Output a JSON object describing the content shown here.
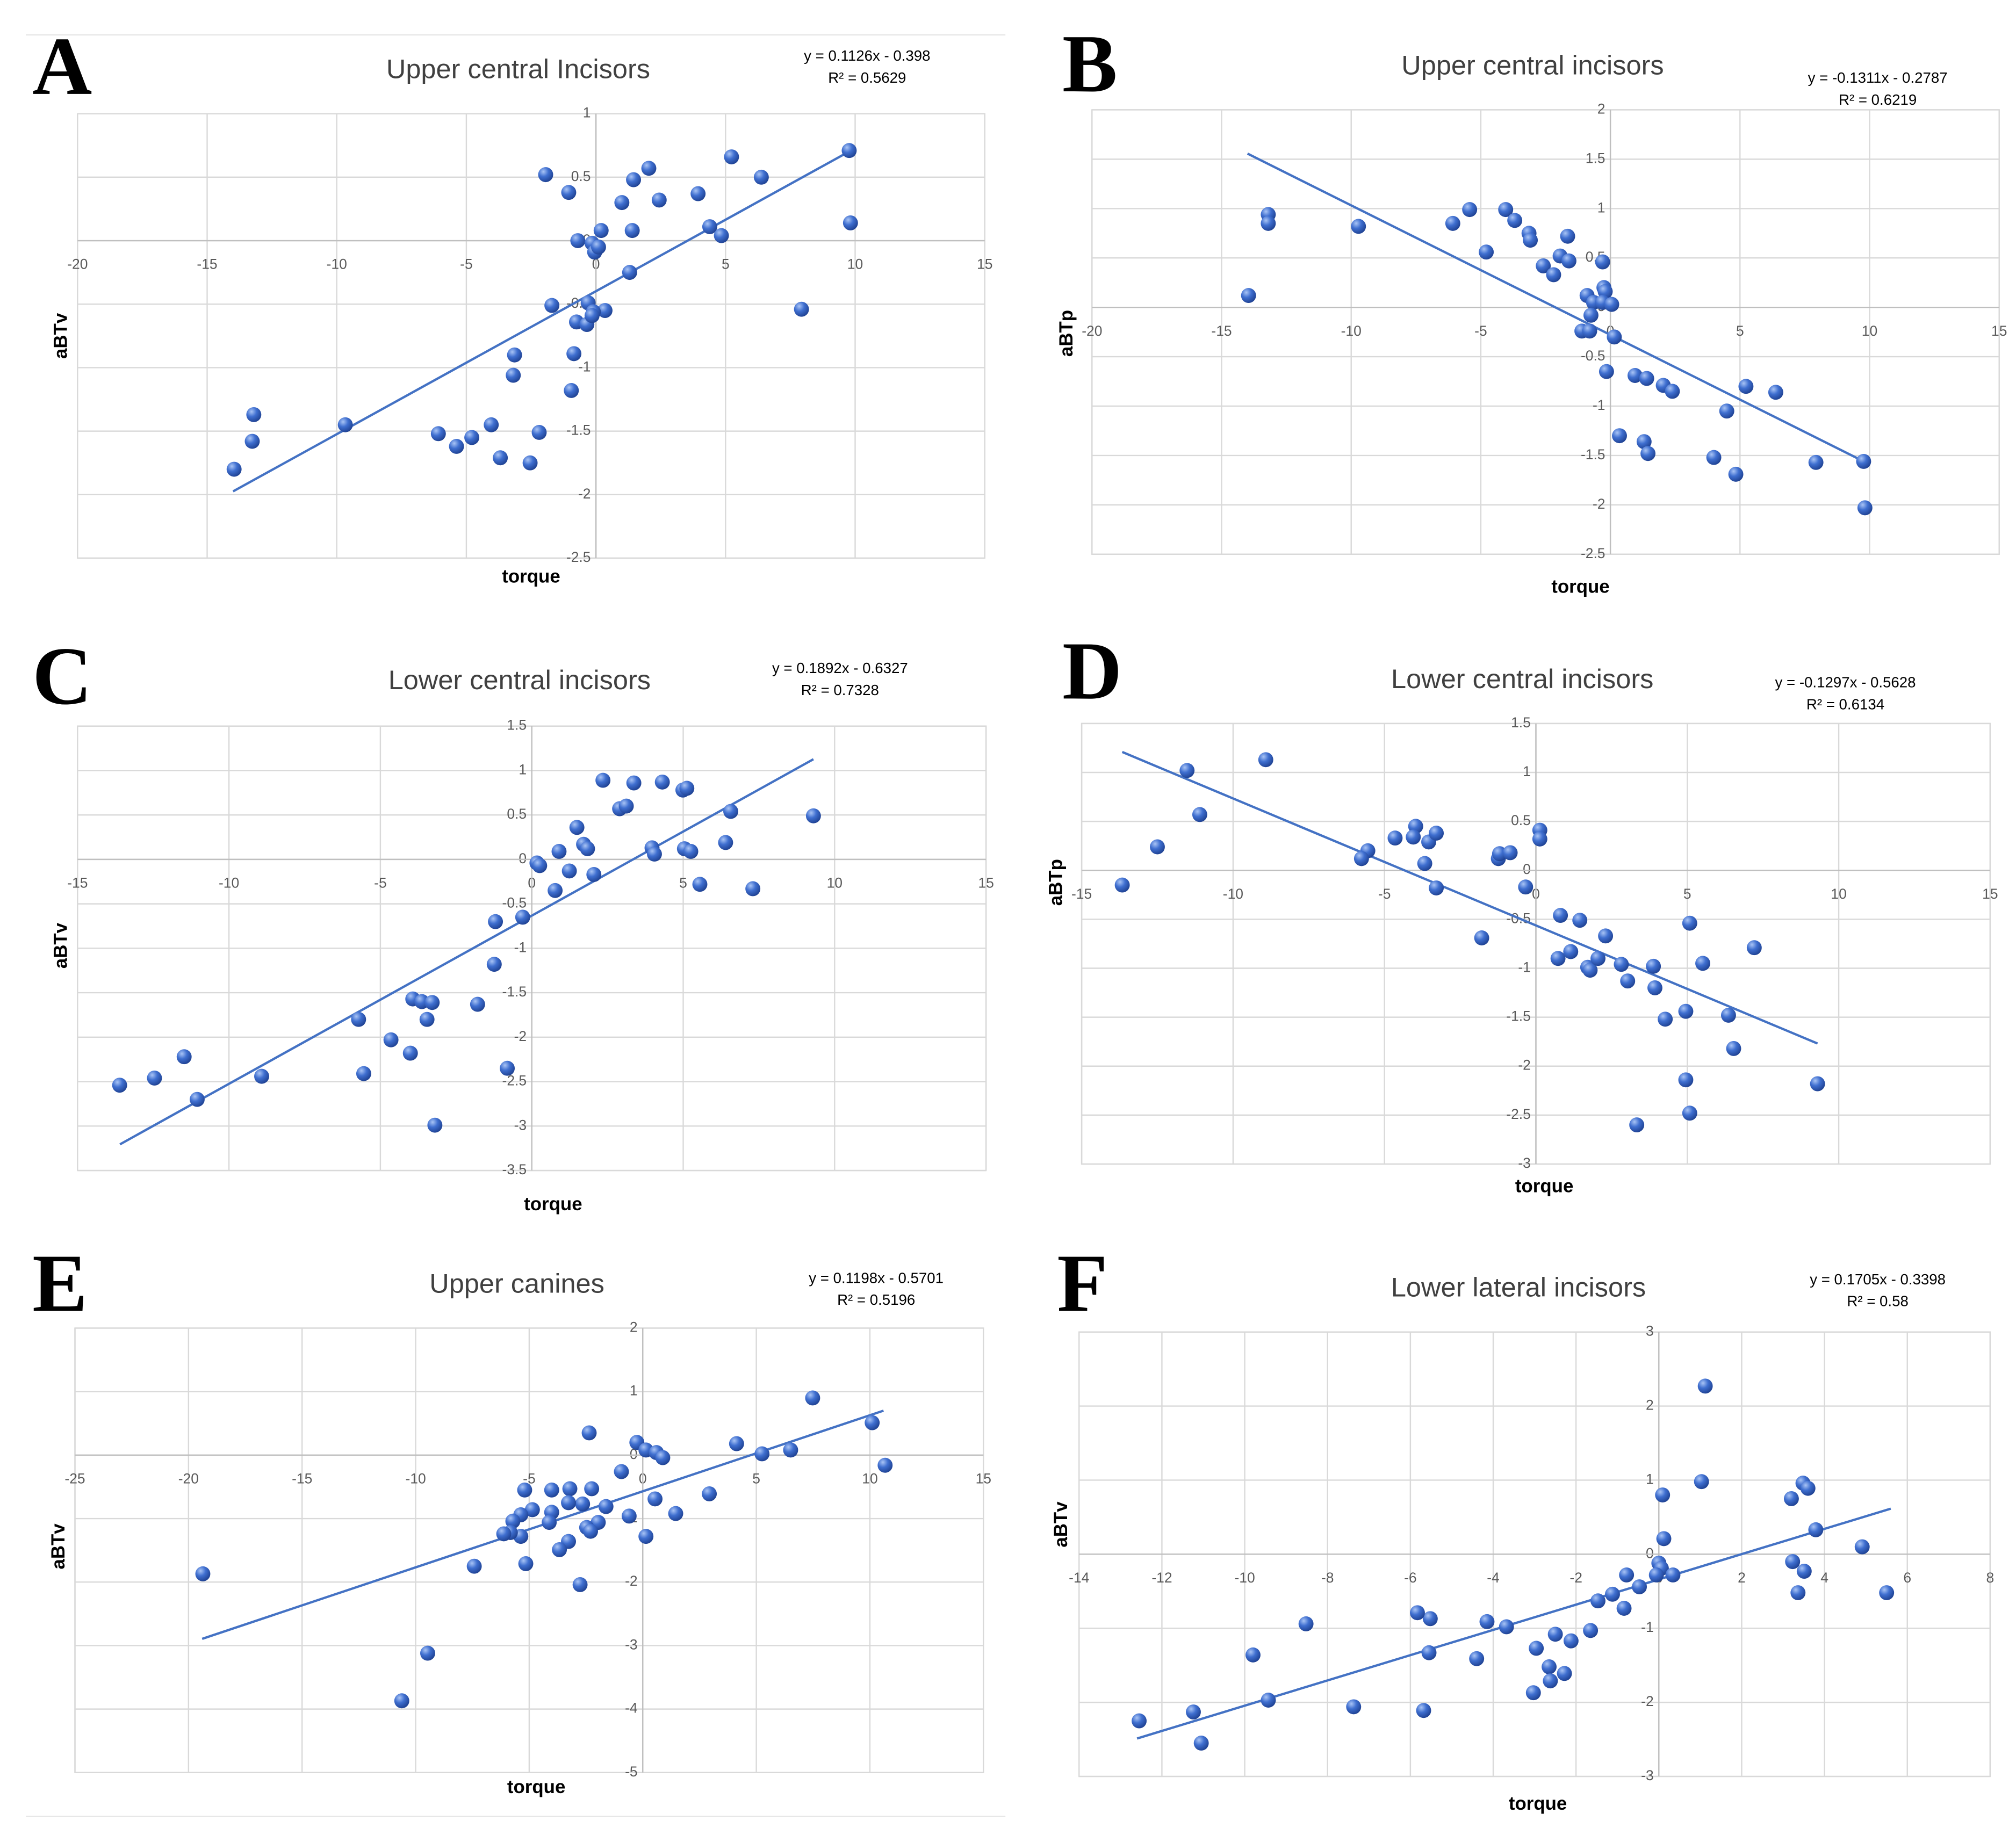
{
  "chart_data": [
    {
      "type": "scatter",
      "label": "A",
      "title": "Upper central Incisors",
      "equation": "y = 0.1126x - 0.398",
      "r2": "R² = 0.5629",
      "xlabel": "torque",
      "ylabel": "aBTv",
      "color": "#4472c4",
      "xlim": [
        -20,
        15
      ],
      "ylim": [
        -2.5,
        1
      ],
      "xticks": [
        -20,
        -15,
        -10,
        -5,
        0,
        5,
        10,
        15
      ],
      "yticks": [
        -2.5,
        -2,
        -1.5,
        -1,
        -0.5,
        0,
        0.5,
        1
      ],
      "grid": true,
      "trendline": {
        "slope": 0.1126,
        "intercept": -0.398,
        "xrange": [
          -14,
          10
        ]
      },
      "x": [
        -1.94,
        -1.05,
        1.45,
        2.04,
        1.0,
        2.44,
        3.94,
        5.23,
        6.38,
        9.77,
        9.82,
        4.39,
        4.84,
        0.2,
        1.4,
        -0.7,
        -0.15,
        -0.05,
        0.1,
        1.3,
        -1.7,
        -0.3,
        0.35,
        -0.1,
        -0.75,
        -0.35,
        -0.15,
        7.93,
        -0.85,
        -3.14,
        -3.19,
        -0.95,
        -2.19,
        -2.54,
        -4.04,
        -3.69,
        -4.79,
        -5.38,
        -6.08,
        -9.67,
        -13.2,
        -13.26,
        -13.96
      ],
      "values": [
        0.52,
        0.38,
        0.48,
        0.57,
        0.3,
        0.32,
        0.37,
        0.66,
        0.5,
        0.71,
        0.14,
        0.11,
        0.04,
        0.08,
        0.08,
        0,
        -0.02,
        -0.09,
        -0.05,
        -0.25,
        -0.51,
        -0.49,
        -0.55,
        -0.56,
        -0.64,
        -0.66,
        -0.59,
        -0.54,
        -0.89,
        -0.9,
        -1.06,
        -1.18,
        -1.51,
        -1.75,
        -1.45,
        -1.71,
        -1.55,
        -1.62,
        -1.52,
        -1.45,
        -1.37,
        -1.58,
        -1.8
      ]
    },
    {
      "type": "scatter",
      "label": "B",
      "title": "Upper central incisors",
      "equation": "y = -0.1311x - 0.2787",
      "r2": "R² = 0.6219",
      "xlabel": "torque",
      "ylabel": "aBTp",
      "color": "#4472c4",
      "xlim": [
        -20,
        15
      ],
      "ylim": [
        -2.5,
        2
      ],
      "xticks": [
        -20,
        -15,
        -10,
        -5,
        0,
        5,
        10,
        15
      ],
      "yticks": [
        -2.5,
        -2,
        -1.5,
        -1,
        -0.5,
        0,
        0.5,
        1,
        1.5,
        2
      ],
      "grid": true,
      "trendline": {
        "slope": -0.1311,
        "intercept": -0.2787,
        "xrange": [
          -14,
          10
        ]
      },
      "x": [
        -13.2,
        -13.2,
        -9.72,
        -13.96,
        -5.43,
        -4.04,
        -3.69,
        -6.08,
        -3.14,
        -3.09,
        -4.79,
        -1.65,
        -1.94,
        -1.6,
        -0.3,
        -2.59,
        -2.19,
        -0.25,
        -0.2,
        -0.9,
        -0.65,
        -0.3,
        0.05,
        -0.75,
        -1.1,
        -0.8,
        0.15,
        -0.15,
        0.95,
        1.4,
        2.04,
        2.39,
        5.23,
        6.38,
        4.49,
        0.35,
        1.3,
        1.45,
        3.99,
        4.84,
        7.93,
        9.77,
        9.82
      ],
      "values": [
        0.94,
        0.85,
        0.82,
        0.12,
        0.99,
        0.99,
        0.88,
        0.85,
        0.75,
        0.68,
        0.56,
        0.72,
        0.52,
        0.47,
        0.46,
        0.42,
        0.33,
        0.2,
        0.16,
        0.12,
        0.05,
        0.05,
        0.03,
        -0.08,
        -0.24,
        -0.24,
        -0.3,
        -0.65,
        -0.69,
        -0.72,
        -0.79,
        -0.85,
        -0.8,
        -0.86,
        -1.05,
        -1.3,
        -1.36,
        -1.48,
        -1.52,
        -1.69,
        -1.57,
        -1.56,
        -2.03
      ]
    },
    {
      "type": "scatter",
      "label": "C",
      "title": "Lower central incisors",
      "equation": "y = 0.1892x - 0.6327",
      "r2": "R² = 0.7328",
      "xlabel": "torque",
      "ylabel": "aBTv",
      "color": "#4472c4",
      "xlim": [
        -15,
        15
      ],
      "ylim": [
        -3.5,
        1.5
      ],
      "xticks": [
        -15,
        -10,
        -5,
        0,
        5,
        10,
        15
      ],
      "yticks": [
        -3.5,
        -3,
        -2.5,
        -2,
        -1.5,
        -1,
        -0.5,
        0,
        0.5,
        1,
        1.5
      ],
      "grid": true,
      "trendline": {
        "slope": 0.1892,
        "intercept": -0.6327,
        "xrange": [
          -13.6,
          9.3
        ]
      },
      "x": [
        -13.61,
        -12.46,
        -11.48,
        -11.05,
        -8.92,
        -5.55,
        -5.72,
        -4.65,
        -4.01,
        -3.93,
        -3.63,
        -3.29,
        -3.46,
        -3.2,
        -1.79,
        -1.24,
        -0.81,
        -1.2,
        -0.3,
        0.17,
        0.26,
        0.77,
        0.9,
        1.24,
        1.49,
        1.71,
        1.84,
        2.05,
        2.35,
        2.9,
        3.12,
        3.37,
        3.97,
        4.05,
        4.31,
        4.99,
        5.12,
        5.04,
        5.25,
        5.55,
        6.57,
        6.4,
        7.3,
        9.3
      ],
      "values": [
        -2.54,
        -2.46,
        -2.22,
        -2.7,
        -2.44,
        -2.41,
        -1.8,
        -2.03,
        -2.18,
        -1.57,
        -1.6,
        -1.61,
        -1.8,
        -2.99,
        -1.63,
        -1.18,
        -2.35,
        -0.7,
        -0.65,
        -0.04,
        -0.07,
        -0.35,
        0.09,
        -0.13,
        0.36,
        0.17,
        0.12,
        -0.17,
        0.89,
        0.57,
        0.6,
        0.86,
        0.13,
        0.06,
        0.87,
        0.78,
        0.8,
        0.12,
        0.09,
        -0.28,
        0.54,
        0.19,
        -0.33,
        0.49
      ]
    },
    {
      "type": "scatter",
      "label": "D",
      "title": "Lower central incisors",
      "equation": "y = -0.1297x - 0.5628",
      "r2": "R² = 0.6134",
      "xlabel": "torque",
      "ylabel": "aBTp",
      "color": "#4472c4",
      "xlim": [
        -15,
        15
      ],
      "ylim": [
        -3,
        1.5
      ],
      "xticks": [
        -15,
        -10,
        -5,
        0,
        5,
        10,
        15
      ],
      "yticks": [
        -3,
        -2.5,
        -2,
        -1.5,
        -1,
        -0.5,
        0,
        0.5,
        1,
        1.5
      ],
      "grid": true,
      "trendline": {
        "slope": -0.1297,
        "intercept": -0.5628,
        "xrange": [
          -13.66,
          9.3
        ]
      },
      "x": [
        -8.92,
        -11.52,
        -11.1,
        -12.5,
        -13.66,
        -5.55,
        -5.76,
        -4.65,
        -3.97,
        -4.05,
        -3.54,
        -3.29,
        -3.67,
        -3.29,
        -1.24,
        -1.2,
        -0.85,
        0.13,
        0.13,
        -0.34,
        -1.79,
        0.81,
        1.45,
        2.3,
        0.73,
        1.15,
        1.71,
        1.79,
        2.05,
        2.82,
        3.03,
        3.88,
        3.93,
        5.08,
        5.51,
        7.21,
        6.36,
        6.53,
        4.95,
        4.27,
        4.95,
        5.08,
        3.33,
        9.3
      ],
      "values": [
        1.13,
        1.02,
        0.57,
        0.24,
        -0.15,
        0.2,
        0.12,
        0.33,
        0.45,
        0.34,
        0.29,
        0.38,
        0.07,
        -0.18,
        0.12,
        0.17,
        0.18,
        0.41,
        0.32,
        -0.17,
        -0.69,
        -0.46,
        -0.51,
        -0.67,
        -0.9,
        -0.83,
        -0.99,
        -1.02,
        -0.9,
        -0.96,
        -1.13,
        -0.98,
        -1.2,
        -0.54,
        -0.95,
        -0.79,
        -1.48,
        -1.82,
        -1.44,
        -1.52,
        -2.14,
        -2.48,
        -2.6,
        -2.18
      ]
    },
    {
      "type": "scatter",
      "label": "E",
      "title": "Upper canines",
      "equation": "y = 0.1198x - 0.5701",
      "r2": "R² = 0.5196",
      "xlabel": "torque",
      "ylabel": "aBTv",
      "color": "#4472c4",
      "xlim": [
        -25,
        15
      ],
      "ylim": [
        -5,
        2
      ],
      "xticks": [
        -25,
        -20,
        -15,
        -10,
        -5,
        0,
        5,
        10,
        15
      ],
      "yticks": [
        -5,
        -4,
        -3,
        -2,
        -1,
        0,
        1,
        2
      ],
      "grid": true,
      "trendline": {
        "slope": 0.1198,
        "intercept": -0.5701,
        "xrange": [
          -19.4,
          10.6
        ]
      },
      "x": [
        -19.37,
        -9.47,
        -10.61,
        -2.36,
        -0.26,
        0.14,
        0.6,
        0.88,
        -0.94,
        4.13,
        5.25,
        6.51,
        7.48,
        10.1,
        10.67,
        2.93,
        1.45,
        0.54,
        0.14,
        -0.6,
        -1.62,
        -1.96,
        -2.25,
        -2.65,
        -2.47,
        -2.3,
        -2.76,
        -3.21,
        -3.27,
        -3.27,
        -3.67,
        -4.01,
        -4.01,
        -4.12,
        -5.2,
        -4.86,
        -5.37,
        -5.37,
        -5.72,
        -5.83,
        -6.12,
        -5.15,
        -7.42
      ],
      "values": [
        -1.87,
        -3.12,
        -3.87,
        0.35,
        0.2,
        0.08,
        0.04,
        -0.04,
        -0.26,
        0.18,
        0.02,
        0.08,
        0.9,
        0.51,
        -0.16,
        -0.61,
        -0.92,
        -0.69,
        -1.28,
        -0.96,
        -0.81,
        -1.06,
        -0.53,
        -0.77,
        -1.14,
        -1.2,
        -2.04,
        -0.53,
        -0.75,
        -1.36,
        -1.49,
        -0.9,
        -0.55,
        -1.06,
        -0.55,
        -0.86,
        -0.94,
        -1.28,
        -1.04,
        -1.22,
        -1.24,
        -1.71,
        -1.75
      ]
    },
    {
      "type": "scatter",
      "label": "F",
      "title": "Lower lateral incisors",
      "equation": "y = 0.1705x - 0.3398",
      "r2": "R² = 0.58",
      "xlabel": "torque",
      "ylabel": "aBTv",
      "color": "#4472c4",
      "xlim": [
        -14,
        8
      ],
      "ylim": [
        -3,
        3
      ],
      "xticks": [
        -14,
        -12,
        -10,
        -8,
        -6,
        -4,
        -2,
        0,
        2,
        4,
        6,
        8
      ],
      "yticks": [
        -3,
        -2,
        -1,
        0,
        1,
        2,
        3
      ],
      "grid": true,
      "trendline": {
        "slope": 0.1705,
        "intercept": -0.3398,
        "xrange": [
          -12.6,
          5.6
        ]
      },
      "x": [
        1.12,
        1.03,
        0.09,
        0.12,
        0,
        0.06,
        -0.06,
        0.34,
        -0.47,
        -0.78,
        -1.12,
        -0.84,
        -1.47,
        -1.65,
        -2.12,
        -2.5,
        -2.96,
        -2.28,
        -2.65,
        -2.62,
        -3.03,
        -3.68,
        -4.15,
        -4.4,
        -5.52,
        -5.83,
        -5.55,
        -5.68,
        -7.37,
        -8.52,
        -9.8,
        -9.43,
        -11.24,
        -11.05,
        -12.55,
        3.2,
        3.48,
        3.6,
        3.79,
        3.23,
        3.51,
        3.36,
        4.91,
        5.5
      ],
      "values": [
        2.27,
        0.98,
        0.8,
        0.21,
        -0.12,
        -0.19,
        -0.28,
        -0.28,
        -0.44,
        -0.28,
        -0.54,
        -0.73,
        -0.63,
        -1.03,
        -1.17,
        -1.08,
        -1.27,
        -1.61,
        -1.52,
        -1.71,
        -1.87,
        -0.98,
        -0.91,
        -1.41,
        -0.87,
        -0.79,
        -1.33,
        -2.11,
        -2.06,
        -0.94,
        -1.36,
        -1.97,
        -2.13,
        -2.55,
        -2.25,
        0.75,
        0.96,
        0.89,
        0.33,
        -0.1,
        -0.23,
        -0.52,
        0.1,
        -0.52
      ]
    }
  ]
}
